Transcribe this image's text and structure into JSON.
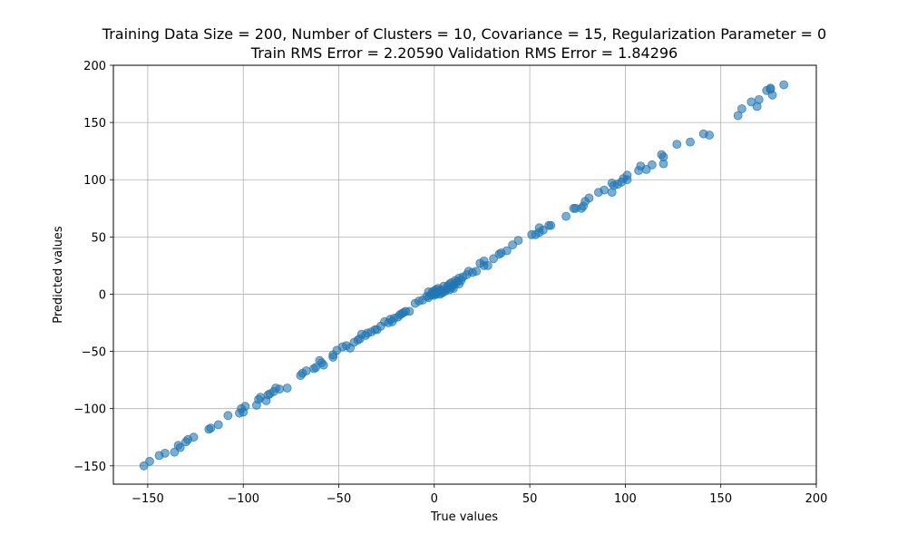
{
  "chart_data": {
    "type": "scatter",
    "title_line1": "Training Data Size = 200, Number of Clusters = 10, Covariance = 15, Regularization Parameter = 0",
    "title_line2": "Train RMS Error = 2.20590 Validation RMS Error = 1.84296",
    "xlabel": "True values",
    "ylabel": "Predicted values",
    "xlim": [
      -168,
      200
    ],
    "ylim": [
      -166,
      200
    ],
    "xticks": [
      -150,
      -100,
      -50,
      0,
      50,
      100,
      150,
      200
    ],
    "yticks": [
      -150,
      -100,
      -50,
      0,
      50,
      100,
      150,
      200
    ],
    "xtick_labels": [
      "−150",
      "−100",
      "−50",
      "0",
      "50",
      "100",
      "150",
      "200"
    ],
    "ytick_labels": [
      "−150",
      "−100",
      "−50",
      "0",
      "50",
      "100",
      "150",
      "200"
    ],
    "grid": true,
    "marker_color": "#1f77b4",
    "marker_alpha": 0.6,
    "points": [
      [
        -152,
        -150
      ],
      [
        -149,
        -146
      ],
      [
        -144,
        -141
      ],
      [
        -141,
        -139
      ],
      [
        -136,
        -138
      ],
      [
        -134,
        -132
      ],
      [
        -133,
        -134
      ],
      [
        -130,
        -129
      ],
      [
        -129,
        -127
      ],
      [
        -126,
        -125
      ],
      [
        -118,
        -118
      ],
      [
        -117,
        -117
      ],
      [
        -113,
        -114
      ],
      [
        -108,
        -106
      ],
      [
        -102,
        -104
      ],
      [
        -101,
        -100
      ],
      [
        -99,
        -98
      ],
      [
        -100,
        -103
      ],
      [
        -93,
        -97
      ],
      [
        -92,
        -92
      ],
      [
        -91,
        -90
      ],
      [
        -88,
        -93
      ],
      [
        -87,
        -88
      ],
      [
        -86,
        -87
      ],
      [
        -84,
        -85
      ],
      [
        -83,
        -82
      ],
      [
        -81,
        -83
      ],
      [
        -77,
        -82
      ],
      [
        -70,
        -71
      ],
      [
        -69,
        -69
      ],
      [
        -67,
        -67
      ],
      [
        -63,
        -65
      ],
      [
        -62,
        -64
      ],
      [
        -60,
        -58
      ],
      [
        -59,
        -60
      ],
      [
        -58,
        -62
      ],
      [
        -53,
        -55
      ],
      [
        -53,
        -53
      ],
      [
        -51,
        -49
      ],
      [
        -48,
        -46
      ],
      [
        -46,
        -45
      ],
      [
        -44,
        -47
      ],
      [
        -42,
        -42
      ],
      [
        -40,
        -40
      ],
      [
        -39,
        -39
      ],
      [
        -38,
        -35
      ],
      [
        -36,
        -36
      ],
      [
        -35,
        -34
      ],
      [
        -33,
        -33
      ],
      [
        -31,
        -31
      ],
      [
        -30,
        -31
      ],
      [
        -28,
        -28
      ],
      [
        -26,
        -24
      ],
      [
        -24,
        -25
      ],
      [
        -23,
        -22
      ],
      [
        -22,
        -24
      ],
      [
        -21,
        -21
      ],
      [
        -19,
        -20
      ],
      [
        -18,
        -18
      ],
      [
        -17,
        -17
      ],
      [
        -16,
        -16
      ],
      [
        -15,
        -15
      ],
      [
        -13,
        -15
      ],
      [
        -10,
        -8
      ],
      [
        -8,
        -6
      ],
      [
        -6,
        -5
      ],
      [
        -4,
        -2
      ],
      [
        -3,
        -3
      ],
      [
        -2,
        -1
      ],
      [
        -1,
        0
      ],
      [
        -1,
        2
      ],
      [
        0,
        -1
      ],
      [
        0,
        1
      ],
      [
        0,
        3
      ],
      [
        1,
        4
      ],
      [
        1,
        0
      ],
      [
        2,
        2
      ],
      [
        2,
        5
      ],
      [
        3,
        3
      ],
      [
        3,
        0
      ],
      [
        4,
        1
      ],
      [
        4,
        4
      ],
      [
        5,
        2
      ],
      [
        6,
        3
      ],
      [
        7,
        5
      ],
      [
        7,
        7
      ],
      [
        8,
        4
      ],
      [
        8,
        9
      ],
      [
        9,
        6
      ],
      [
        9,
        10
      ],
      [
        10,
        8
      ],
      [
        10,
        5
      ],
      [
        11,
        9
      ],
      [
        11,
        12
      ],
      [
        12,
        11
      ],
      [
        13,
        9
      ],
      [
        13,
        14
      ],
      [
        14,
        12
      ],
      [
        15,
        15
      ],
      [
        17,
        17
      ],
      [
        18,
        20
      ],
      [
        20,
        19
      ],
      [
        22,
        20
      ],
      [
        24,
        27
      ],
      [
        26,
        29
      ],
      [
        26,
        25
      ],
      [
        28,
        25
      ],
      [
        31,
        31
      ],
      [
        34,
        35
      ],
      [
        35,
        36
      ],
      [
        38,
        38
      ],
      [
        41,
        43
      ],
      [
        44,
        47
      ],
      [
        51,
        52
      ],
      [
        53,
        52
      ],
      [
        55,
        54
      ],
      [
        55,
        58
      ],
      [
        57,
        56
      ],
      [
        60,
        60
      ],
      [
        61,
        60
      ],
      [
        69,
        68
      ],
      [
        73,
        75
      ],
      [
        74,
        75
      ],
      [
        77,
        75
      ],
      [
        78,
        77
      ],
      [
        79,
        81
      ],
      [
        81,
        84
      ],
      [
        86,
        89
      ],
      [
        89,
        91
      ],
      [
        93,
        97
      ],
      [
        93,
        89
      ],
      [
        94,
        95
      ],
      [
        96,
        96
      ],
      [
        98,
        98
      ],
      [
        99,
        101
      ],
      [
        101,
        100
      ],
      [
        101,
        104
      ],
      [
        107,
        108
      ],
      [
        108,
        112
      ],
      [
        111,
        109
      ],
      [
        114,
        113
      ],
      [
        119,
        122
      ],
      [
        120,
        120
      ],
      [
        120,
        114
      ],
      [
        127,
        131
      ],
      [
        134,
        133
      ],
      [
        141,
        140
      ],
      [
        144,
        139
      ],
      [
        159,
        156
      ],
      [
        161,
        162
      ],
      [
        166,
        168
      ],
      [
        169,
        164
      ],
      [
        170,
        170
      ],
      [
        174,
        178
      ],
      [
        176,
        180
      ],
      [
        177,
        174
      ],
      [
        183,
        183
      ],
      [
        176,
        179
      ],
      [
        -3,
        2
      ],
      [
        5,
        7
      ]
    ]
  }
}
